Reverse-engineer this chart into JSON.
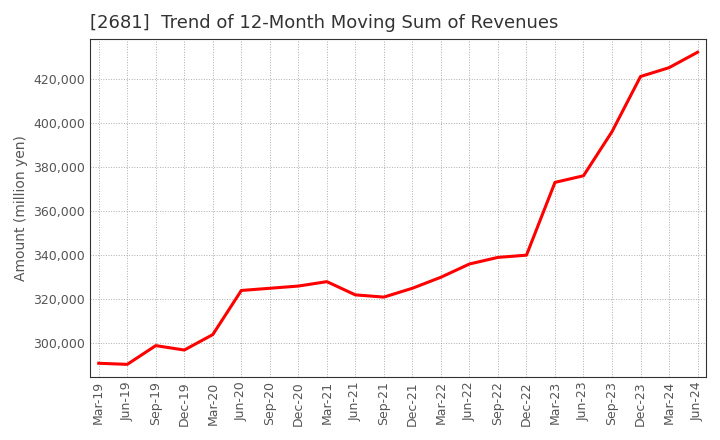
{
  "title": "[2681]  Trend of 12-Month Moving Sum of Revenues",
  "ylabel": "Amount (million yen)",
  "line_color": "#ff0000",
  "background_color": "#ffffff",
  "grid_color": "#999999",
  "dates": [
    "Mar-19",
    "Jun-19",
    "Sep-19",
    "Dec-19",
    "Mar-20",
    "Jun-20",
    "Sep-20",
    "Dec-20",
    "Mar-21",
    "Jun-21",
    "Sep-21",
    "Dec-21",
    "Mar-22",
    "Jun-22",
    "Sep-22",
    "Dec-22",
    "Mar-23",
    "Jun-23",
    "Sep-23",
    "Dec-23",
    "Mar-24",
    "Jun-24"
  ],
  "values": [
    291000,
    290500,
    299000,
    297000,
    304000,
    324000,
    325000,
    326000,
    328000,
    322000,
    321000,
    325000,
    330000,
    336000,
    339000,
    340000,
    373000,
    376000,
    396000,
    421000,
    425000,
    432000
  ],
  "ylim": [
    285000,
    438000
  ],
  "yticks": [
    300000,
    320000,
    340000,
    360000,
    380000,
    400000,
    420000
  ],
  "title_fontsize": 13,
  "ylabel_fontsize": 10,
  "tick_fontsize": 9,
  "line_width": 2.2
}
